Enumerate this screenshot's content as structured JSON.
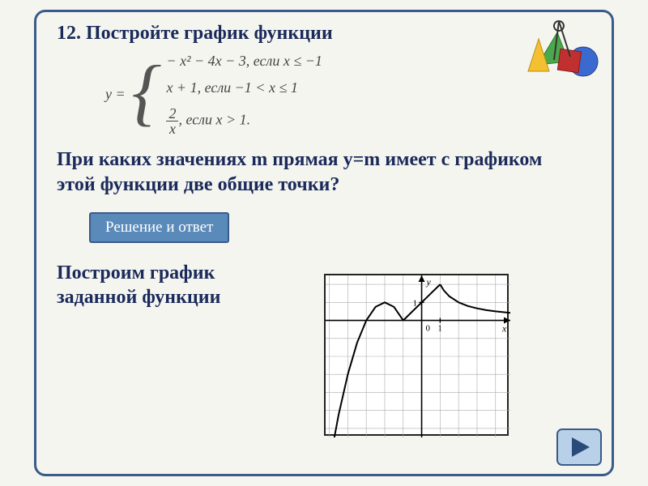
{
  "title": "12. Постройте график функции",
  "formula": {
    "lhs": "y =",
    "cases": [
      "− x² − 4x − 3, если x ≤ −1",
      "x + 1, если −1 < x ≤ 1",
      "2 / x , если x > 1."
    ],
    "frac_num": "2",
    "frac_den": "x",
    "case3_tail": ", если x > 1."
  },
  "question": "При каких значениях m прямая y=m имеет с графиком этой функции две общие точки?",
  "button_label": "Решение и ответ",
  "subtitle": "Построим график заданной функции",
  "chart": {
    "type": "line",
    "background": "#ffffff",
    "grid_color": "#aaaaaa",
    "axis_color": "#000000",
    "curve_color": "#000000",
    "curve_width": 2.0,
    "xlim": [
      -5.2,
      4.8
    ],
    "ylim": [
      -6.5,
      2.5
    ],
    "xtick_step": 1,
    "ytick_step": 1,
    "x_label": "x",
    "y_label": "y",
    "tick_label_1": "1",
    "segments": [
      {
        "name": "parabola",
        "points": [
          [
            -5.2,
            -9.24
          ],
          [
            -5,
            -8
          ],
          [
            -4.5,
            -5.25
          ],
          [
            -4,
            -3
          ],
          [
            -3.5,
            -1.25
          ],
          [
            -3,
            0
          ],
          [
            -2.5,
            0.75
          ],
          [
            -2,
            1
          ],
          [
            -1.5,
            0.75
          ],
          [
            -1,
            0
          ]
        ]
      },
      {
        "name": "linear",
        "points": [
          [
            -1,
            0
          ],
          [
            -0.5,
            0.5
          ],
          [
            0,
            1
          ],
          [
            0.5,
            1.5
          ],
          [
            1,
            2
          ]
        ]
      },
      {
        "name": "hyperbola",
        "points": [
          [
            1,
            2
          ],
          [
            1.2,
            1.667
          ],
          [
            1.5,
            1.333
          ],
          [
            2,
            1
          ],
          [
            2.5,
            0.8
          ],
          [
            3,
            0.667
          ],
          [
            3.5,
            0.571
          ],
          [
            4,
            0.5
          ],
          [
            4.8,
            0.417
          ]
        ]
      }
    ]
  },
  "colors": {
    "frame": "#3a5a8a",
    "heading": "#1a2a5a",
    "button_bg": "#5a8aba",
    "button_border": "#3a5a8a",
    "button_text": "#ffffff",
    "icon_green": "#4ca84c",
    "icon_yellow": "#f5c030",
    "icon_blue": "#3a6ad0",
    "icon_red": "#c03030",
    "nav_fill": "#b8d0e8",
    "nav_stroke": "#3a5a8a",
    "nav_arrow": "#2a4a7a"
  }
}
